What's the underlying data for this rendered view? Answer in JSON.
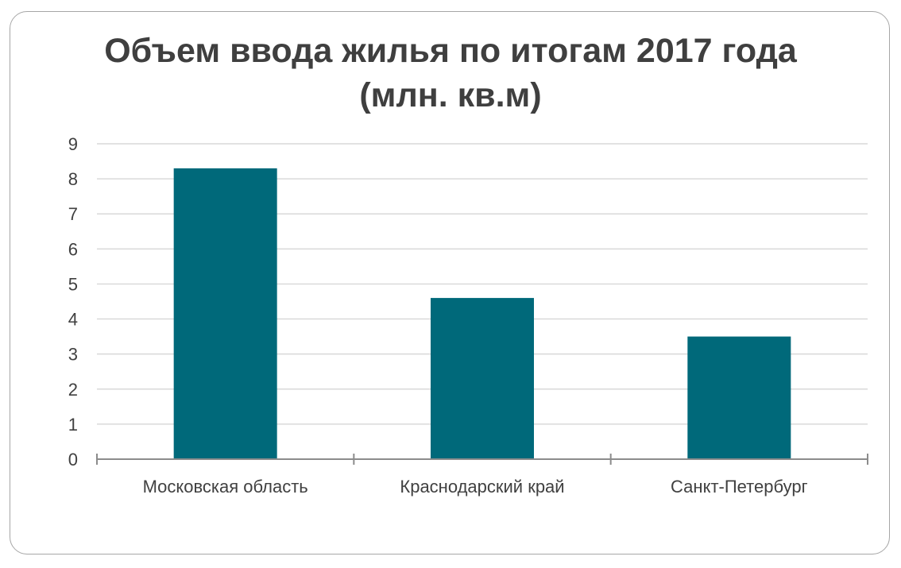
{
  "chart_data": {
    "type": "bar",
    "title_line1": "Объем ввода жилья по итогам 2017 года",
    "title_line2": "(млн. кв.м)",
    "categories": [
      "Московская область",
      "Краснодарский край",
      "Санкт-Петербург"
    ],
    "values": [
      8.3,
      4.6,
      3.5
    ],
    "ylim": [
      0,
      9
    ],
    "yticks": [
      "0",
      "1",
      "2",
      "3",
      "4",
      "5",
      "6",
      "7",
      "8",
      "9"
    ],
    "grid": true,
    "legend": "none",
    "colors": {
      "bar": "#00697a",
      "grid": "#d9d9d9",
      "axis": "#8c8c8c"
    }
  }
}
